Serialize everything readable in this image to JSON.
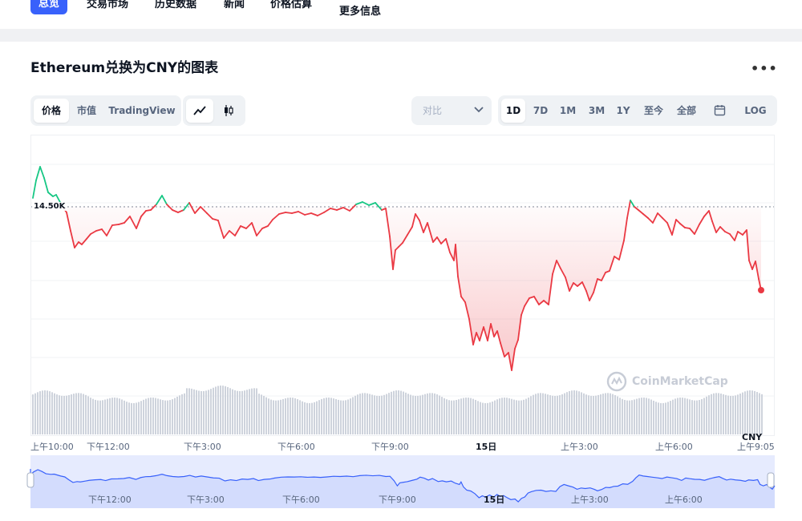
{
  "nav": {
    "tabs": [
      {
        "label": "总览",
        "active": true
      },
      {
        "label": "交易市场"
      },
      {
        "label": "历史数据"
      },
      {
        "label": "新闻"
      },
      {
        "label": "价格估算"
      },
      {
        "label": "更多信息"
      }
    ]
  },
  "chart_header": {
    "title": "Ethereum兑换为CNY的图表",
    "more_icon": "more-dots-icon"
  },
  "controls": {
    "view_tabs": [
      "价格",
      "市值",
      "TradingView"
    ],
    "chart_types": [
      "line-chart-icon",
      "candlestick-icon"
    ],
    "compare_placeholder": "对比",
    "ranges": [
      "1D",
      "7D",
      "1M",
      "3M",
      "1Y",
      "至今",
      "全部"
    ],
    "calendar_icon": "calendar-icon",
    "log_label": "LOG",
    "active_range": "1D",
    "active_view": "价格"
  },
  "chart_data": {
    "type": "line",
    "currency": "CNY",
    "reference_price_label": "14.50K",
    "x_tick_labels": [
      "上午10:00",
      "下午12:00",
      "下午3:00",
      "下午6:00",
      "下午9:00",
      "15日",
      "上午3:00",
      "上午6:00",
      "上午9:05"
    ],
    "colors": {
      "up": "#16c784",
      "down": "#ea3943",
      "volume": "#ced3dc"
    },
    "watermark": "CoinMarketCap"
  },
  "navigator": {
    "x_tick_labels": [
      "下午12:00",
      "下午3:00",
      "下午6:00",
      "下午9:00",
      "15日",
      "上午3:00",
      "上午6:00"
    ]
  }
}
